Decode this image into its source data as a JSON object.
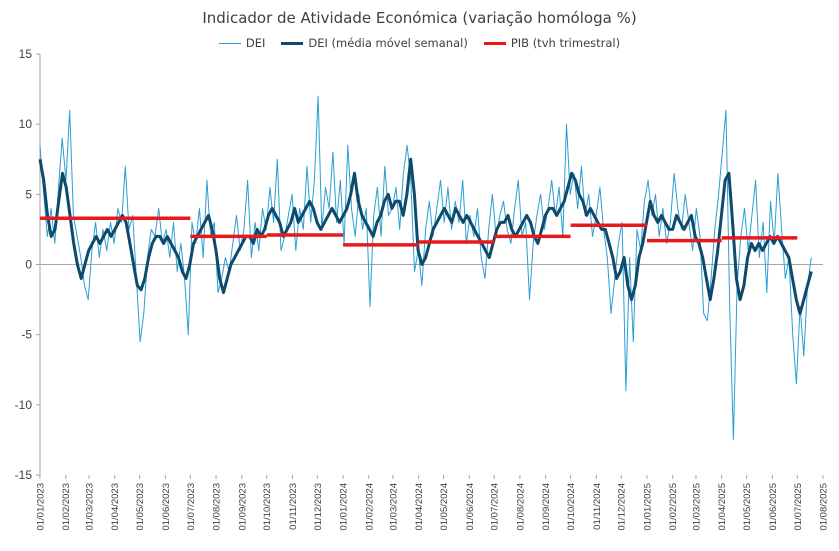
{
  "chart_data": {
    "type": "line",
    "title": "Indicador de Atividade Económica (variação homóloga %)",
    "xlabel": "",
    "ylabel": "",
    "ylim": [
      -15,
      15
    ],
    "yticks": [
      -15,
      -10,
      -5,
      0,
      5,
      10,
      15
    ],
    "grid": false,
    "legend_position": "top-center",
    "x_tick_labels": [
      "01/01/2023",
      "01/02/2023",
      "01/03/2023",
      "01/04/2023",
      "01/05/2023",
      "01/06/2023",
      "01/07/2023",
      "01/08/2023",
      "01/09/2023",
      "01/10/2023",
      "01/11/2023",
      "01/12/2023",
      "01/01/2024",
      "01/02/2024",
      "01/03/2024",
      "01/04/2024",
      "01/05/2024",
      "01/06/2024",
      "01/07/2024",
      "01/08/2024",
      "01/09/2024",
      "01/10/2024",
      "01/11/2024",
      "01/12/2024",
      "01/01/2025",
      "01/02/2025",
      "01/03/2025",
      "01/04/2025",
      "01/05/2025",
      "01/06/2025",
      "01/07/2025",
      "01/08/2025"
    ],
    "series": [
      {
        "name": "DEI",
        "color": "#2b9fd3",
        "style": "thin-line",
        "x_unit": "date",
        "sampled_every_days": 7,
        "x_start": "01/01/2023",
        "values": [
          8.5,
          5.0,
          2.0,
          4.0,
          1.5,
          5.5,
          9.0,
          6.0,
          11.0,
          3.5,
          2.0,
          0.5,
          -1.5,
          -2.5,
          1.0,
          3.0,
          0.5,
          2.5,
          1.0,
          3.0,
          1.5,
          4.0,
          3.0,
          7.0,
          2.5,
          3.5,
          -1.0,
          -5.5,
          -3.5,
          0.5,
          2.5,
          2.0,
          4.0,
          1.5,
          2.5,
          0.5,
          3.0,
          -0.5,
          1.5,
          -1.0,
          -5.0,
          3.0,
          1.5,
          4.0,
          0.5,
          6.0,
          2.0,
          3.0,
          -2.0,
          -1.0,
          0.5,
          -0.5,
          1.5,
          3.5,
          1.0,
          2.5,
          6.0,
          0.5,
          3.0,
          1.0,
          4.0,
          2.5,
          5.5,
          3.0,
          7.5,
          1.0,
          2.0,
          3.5,
          5.0,
          1.0,
          4.0,
          2.5,
          7.0,
          3.0,
          6.0,
          12.0,
          2.5,
          5.5,
          4.0,
          8.0,
          3.0,
          6.0,
          1.5,
          8.5,
          4.0,
          2.0,
          5.0,
          2.5,
          4.0,
          -3.0,
          3.5,
          5.5,
          2.0,
          7.0,
          3.5,
          4.0,
          5.5,
          2.5,
          6.5,
          8.5,
          6.0,
          -0.5,
          1.0,
          -1.5,
          2.5,
          4.5,
          2.0,
          4.0,
          6.0,
          3.0,
          5.5,
          2.5,
          4.5,
          3.0,
          6.0,
          1.5,
          3.5,
          2.0,
          4.0,
          0.5,
          -1.0,
          2.5,
          5.0,
          2.0,
          3.5,
          4.5,
          2.5,
          1.5,
          4.0,
          6.0,
          2.0,
          3.0,
          -2.5,
          1.5,
          3.5,
          5.0,
          2.5,
          4.0,
          6.0,
          3.5,
          5.5,
          2.0,
          10.0,
          5.0,
          6.5,
          4.0,
          7.0,
          3.5,
          5.0,
          2.0,
          3.5,
          5.5,
          2.5,
          0.5,
          -3.5,
          -1.0,
          1.5,
          3.0,
          -9.0,
          0.5,
          -5.5,
          2.5,
          1.0,
          4.5,
          6.0,
          3.5,
          5.0,
          2.0,
          4.0,
          1.5,
          3.0,
          6.5,
          4.0,
          2.5,
          5.0,
          3.0,
          1.0,
          4.0,
          2.0,
          -3.5,
          -4.0,
          -1.0,
          2.5,
          5.0,
          8.0,
          11.0,
          -3.0,
          -12.5,
          -1.5,
          2.0,
          4.0,
          1.0,
          3.5,
          6.0,
          0.5,
          3.0,
          -2.0,
          4.5,
          1.5,
          6.5,
          2.5,
          -1.0,
          0.5,
          -5.0,
          -8.5,
          -3.0,
          -6.5,
          -1.5,
          0.5
        ]
      },
      {
        "name": "DEI (média móvel semanal)",
        "color": "#0d4a6b",
        "style": "thick-line",
        "x_unit": "date",
        "sampled_every_days": 7,
        "x_start": "01/01/2023",
        "values": [
          7.5,
          6.0,
          3.5,
          2.0,
          2.5,
          4.5,
          6.5,
          5.5,
          3.5,
          1.5,
          0.0,
          -1.0,
          0.0,
          1.0,
          1.5,
          2.0,
          1.5,
          2.0,
          2.5,
          2.0,
          2.5,
          3.0,
          3.5,
          3.0,
          1.5,
          0.0,
          -1.5,
          -1.8,
          -1.0,
          0.5,
          1.5,
          2.0,
          2.0,
          1.5,
          2.0,
          1.5,
          1.0,
          0.5,
          -0.5,
          -1.0,
          0.0,
          1.5,
          2.0,
          2.5,
          3.0,
          3.5,
          2.5,
          1.0,
          -1.0,
          -2.0,
          -1.0,
          0.0,
          0.5,
          1.0,
          1.5,
          2.0,
          2.0,
          1.5,
          2.5,
          2.0,
          2.5,
          3.5,
          4.0,
          3.5,
          3.0,
          2.0,
          2.5,
          3.0,
          4.0,
          3.0,
          3.5,
          4.0,
          4.5,
          4.0,
          3.0,
          2.5,
          3.0,
          3.5,
          4.0,
          3.5,
          3.0,
          3.5,
          4.0,
          5.0,
          6.5,
          4.5,
          3.5,
          3.0,
          2.5,
          2.0,
          3.0,
          3.5,
          4.5,
          5.0,
          4.0,
          4.5,
          4.5,
          3.5,
          5.0,
          7.5,
          5.0,
          1.0,
          0.0,
          0.5,
          1.5,
          2.5,
          3.0,
          3.5,
          4.0,
          3.5,
          3.0,
          4.0,
          3.5,
          3.0,
          3.5,
          3.0,
          2.5,
          2.0,
          1.5,
          1.0,
          0.5,
          1.5,
          2.5,
          3.0,
          3.0,
          3.5,
          2.5,
          2.0,
          2.5,
          3.0,
          3.5,
          3.0,
          2.0,
          1.5,
          2.5,
          3.5,
          4.0,
          4.0,
          3.5,
          4.0,
          4.5,
          5.5,
          6.5,
          6.0,
          5.0,
          4.5,
          3.5,
          4.0,
          3.5,
          3.0,
          2.5,
          2.5,
          1.5,
          0.5,
          -1.0,
          -0.5,
          0.5,
          -1.5,
          -2.5,
          -1.5,
          0.5,
          1.5,
          3.0,
          4.5,
          3.5,
          3.0,
          3.5,
          3.0,
          2.5,
          2.5,
          3.5,
          3.0,
          2.5,
          3.0,
          3.5,
          2.0,
          1.5,
          0.5,
          -1.0,
          -2.5,
          -1.0,
          1.0,
          3.5,
          6.0,
          6.5,
          3.0,
          -1.0,
          -2.5,
          -1.5,
          0.5,
          1.5,
          1.0,
          1.5,
          1.0,
          1.5,
          2.0,
          1.5,
          2.0,
          1.5,
          1.0,
          0.5,
          -1.0,
          -2.5,
          -3.5,
          -2.5,
          -1.5,
          -0.5
        ]
      },
      {
        "name": "PIB (tvh trimestral)",
        "color": "#e8191a",
        "style": "step",
        "x_unit": "date",
        "segments": [
          {
            "start": "01/01/2023",
            "end": "01/07/2023",
            "value": 3.3
          },
          {
            "start": "01/07/2023",
            "end": "01/10/2023",
            "value": 2.0
          },
          {
            "start": "01/10/2023",
            "end": "01/01/2024",
            "value": 2.1
          },
          {
            "start": "01/01/2024",
            "end": "01/04/2024",
            "value": 1.4
          },
          {
            "start": "01/04/2024",
            "end": "01/07/2024",
            "value": 1.6
          },
          {
            "start": "01/07/2024",
            "end": "01/10/2024",
            "value": 2.0
          },
          {
            "start": "01/10/2024",
            "end": "01/01/2025",
            "value": 2.8
          },
          {
            "start": "01/01/2025",
            "end": "01/04/2025",
            "value": 1.7
          },
          {
            "start": "01/04/2025",
            "end": "01/07/2025",
            "value": 1.9
          }
        ]
      }
    ]
  }
}
